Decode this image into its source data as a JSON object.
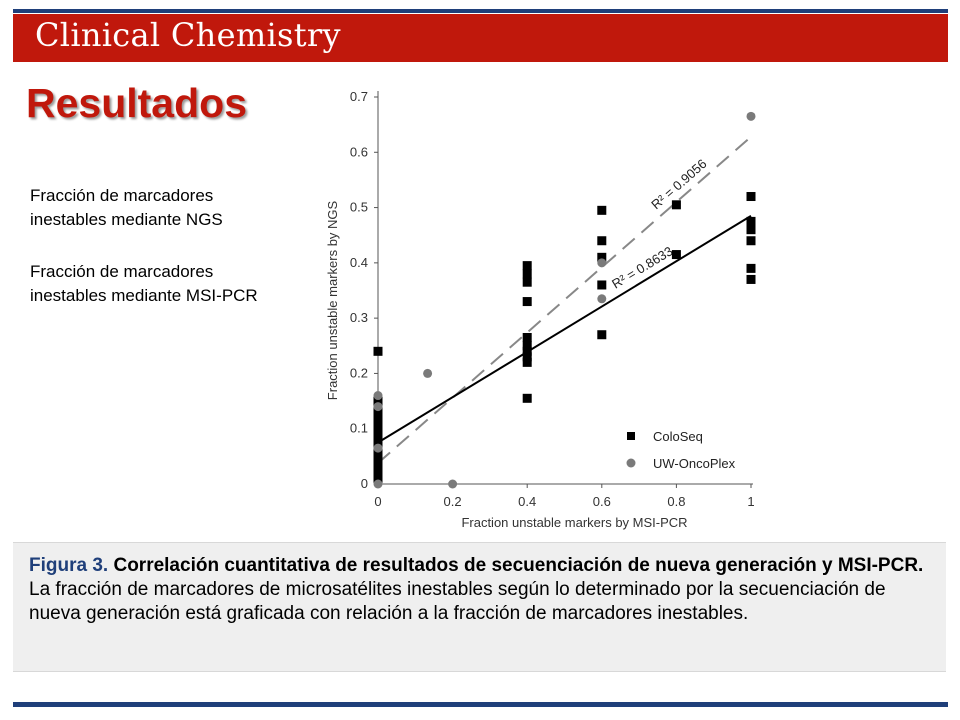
{
  "header": {
    "journal": "Clinical Chemistry"
  },
  "slide": {
    "title": "Resultados",
    "side_label_1": "Fracción de marcadores inestables mediante NGS",
    "side_label_2": "Fracción de marcadores inestables mediante MSI-PCR"
  },
  "caption": {
    "lead": "Figura 3.",
    "bold": "Correlación cuantitativa de resultados de secuenciación de nueva generación y MSI-PCR.",
    "body": "La fracción de marcadores de microsatélites inestables según lo determinado por la secuenciación de nueva generación está graficada con relación a la fracción de marcadores inestables."
  },
  "chart_data": {
    "type": "scatter",
    "xlabel": "Fraction unstable markers by MSI-PCR",
    "ylabel": "Fraction unstable markers by NGS",
    "xlim": [
      0,
      1
    ],
    "ylim": [
      0,
      0.7
    ],
    "x_ticks": [
      "0",
      "0.2",
      "0.4",
      "0.6",
      "0.8",
      "1"
    ],
    "y_ticks": [
      "0",
      "0.1",
      "0.2",
      "0.3",
      "0.4",
      "0.5",
      "0.6",
      "0.7"
    ],
    "legend_position": "bottom-right",
    "series": [
      {
        "name": "ColoSeq",
        "marker": "square",
        "color": "#000000",
        "points": [
          [
            0,
            0.24
          ],
          [
            0,
            0.15
          ],
          [
            0,
            0.14
          ],
          [
            0,
            0.13
          ],
          [
            0,
            0.12
          ],
          [
            0,
            0.11
          ],
          [
            0,
            0.1
          ],
          [
            0,
            0.09
          ],
          [
            0,
            0.08
          ],
          [
            0,
            0.07
          ],
          [
            0,
            0.06
          ],
          [
            0,
            0.05
          ],
          [
            0,
            0.04
          ],
          [
            0,
            0.03
          ],
          [
            0,
            0.02
          ],
          [
            0,
            0.01
          ],
          [
            0.4,
            0.395
          ],
          [
            0.4,
            0.38
          ],
          [
            0.4,
            0.365
          ],
          [
            0.4,
            0.33
          ],
          [
            0.4,
            0.265
          ],
          [
            0.4,
            0.25
          ],
          [
            0.4,
            0.24
          ],
          [
            0.4,
            0.23
          ],
          [
            0.4,
            0.22
          ],
          [
            0.4,
            0.155
          ],
          [
            0.6,
            0.495
          ],
          [
            0.6,
            0.44
          ],
          [
            0.6,
            0.41
          ],
          [
            0.6,
            0.36
          ],
          [
            0.6,
            0.27
          ],
          [
            0.8,
            0.505
          ],
          [
            0.8,
            0.415
          ],
          [
            1,
            0.52
          ],
          [
            1,
            0.475
          ],
          [
            1,
            0.46
          ],
          [
            1,
            0.44
          ],
          [
            1,
            0.39
          ],
          [
            1,
            0.37
          ]
        ]
      },
      {
        "name": "UW-OncoPlex",
        "marker": "circle",
        "color": "#7a7a7a",
        "points": [
          [
            0,
            0.16
          ],
          [
            0,
            0.14
          ],
          [
            0,
            0.065
          ],
          [
            0,
            0
          ],
          [
            0.133,
            0.2
          ],
          [
            0.2,
            0
          ],
          [
            0.6,
            0.4
          ],
          [
            0.6,
            0.335
          ],
          [
            1,
            0.665
          ]
        ]
      }
    ],
    "fits": [
      {
        "label": "R² = 0.9056",
        "style": "dashed",
        "color": "#888888",
        "intercept": 0.038,
        "slope": 0.59
      },
      {
        "label": "R² = 0.8633",
        "style": "solid",
        "color": "#000000",
        "intercept": 0.075,
        "slope": 0.41
      }
    ]
  }
}
